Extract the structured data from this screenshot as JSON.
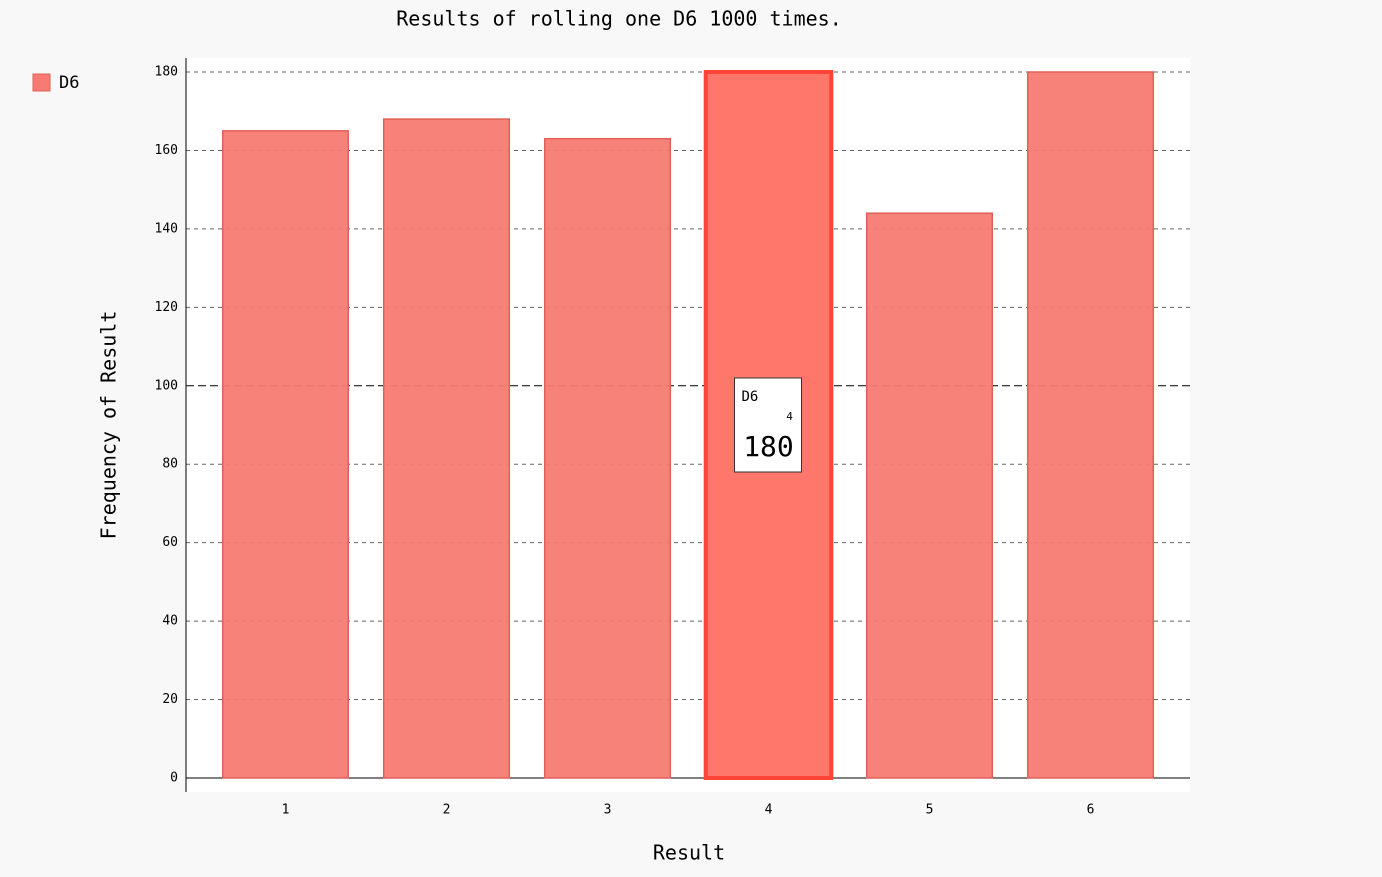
{
  "chart_data": {
    "type": "bar",
    "title": "Results of rolling one D6 1000 times.",
    "x_label": "Result",
    "y_label": "Frequency of Result",
    "categories": [
      "1",
      "2",
      "3",
      "4",
      "5",
      "6"
    ],
    "series": [
      {
        "name": "D6",
        "color": "#f77b72",
        "values": [
          165,
          168,
          163,
          180,
          144,
          180
        ]
      }
    ],
    "ylim": [
      0,
      180
    ],
    "yticks": [
      0,
      20,
      40,
      60,
      80,
      100,
      120,
      140,
      160,
      180
    ],
    "grid": true,
    "legend": "left"
  }
}
